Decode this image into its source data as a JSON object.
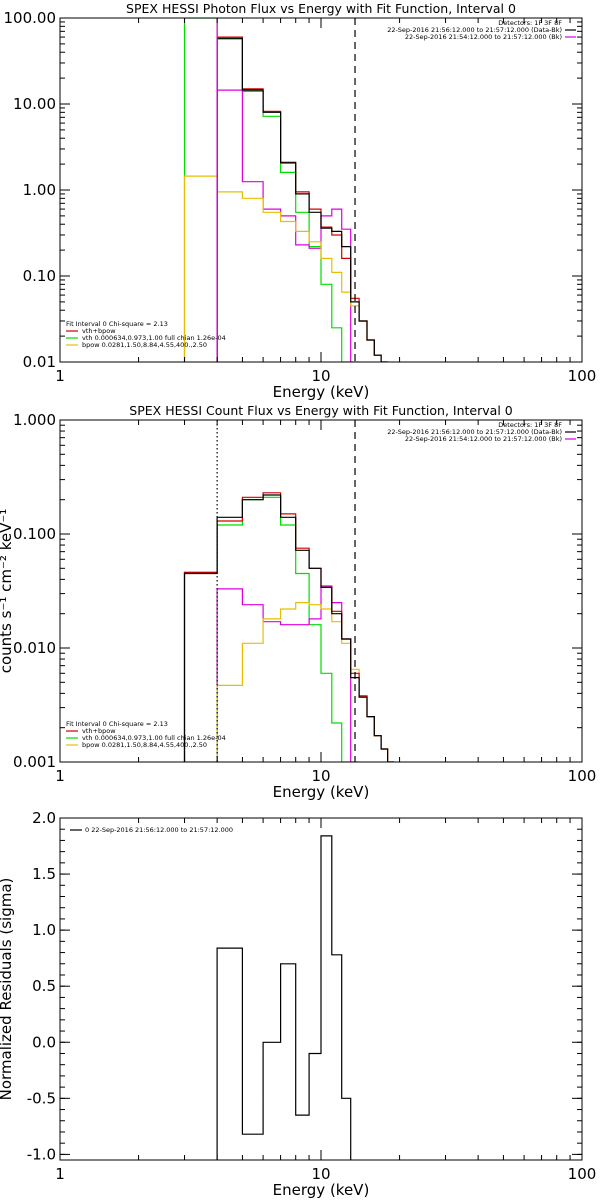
{
  "colors": {
    "total": "#000000",
    "model": "#d00000",
    "vth": "#00dd00",
    "vth2": "#dd00dd",
    "bpow": "#e6c000"
  },
  "chart_data": [
    {
      "type": "line",
      "title": "SPEX HESSI Photon Flux vs Energy with Fit Function, Interval 0",
      "xlabel": "Energy (keV)",
      "ylabel": "",
      "xscale": "log",
      "yscale": "log",
      "xlim": [
        1,
        100
      ],
      "ylim": [
        0.01,
        100
      ],
      "xticks": [
        "1",
        "10",
        "100"
      ],
      "yticks": [
        "0.01",
        "0.10",
        "1.00",
        "10.00",
        "100.00"
      ],
      "vlines": [
        {
          "x": 4.0,
          "style": "solid",
          "color": "#dd00dd"
        },
        {
          "x": 13.5,
          "style": "dashed",
          "color": "#000000"
        }
      ],
      "legend_top": [
        {
          "text": "Detectors: 1F 3F 8F",
          "color": ""
        },
        {
          "text": "22-Sep-2016 21:56:12.000 to 21:57:12.000 (Data-Bk)",
          "color": "#000000"
        },
        {
          "text": "22-Sep-2016 21:54:12.000 to 21:57:12.000 (Bk)",
          "color": "#dd00dd"
        }
      ],
      "legend_bottom": [
        {
          "text": "Fit Interval 0   Chi-square = 2.13",
          "color": ""
        },
        {
          "text": "vth+bpow",
          "color": "#d00000"
        },
        {
          "text": "vth 0.000634,0.973,1.00  full chian 1.26e-04",
          "color": "#00dd00"
        },
        {
          "text": "bpow 0.0281,1.50,8.84,4.55,400.,2.50",
          "color": "#e6c000"
        }
      ],
      "edges": [
        3,
        4,
        5,
        6,
        7,
        8,
        9,
        10,
        11,
        12,
        13,
        14,
        15,
        16,
        17,
        18,
        19,
        20
      ],
      "series": [
        {
          "key": "total",
          "values": [
            null,
            58,
            14.5,
            8,
            2.1,
            0.9,
            0.55,
            0.36,
            0.33,
            0.22,
            0.05,
            0.03,
            0.018,
            0.012,
            0.01,
            null,
            null
          ]
        },
        {
          "key": "model",
          "values": [
            null,
            60,
            15,
            8.2,
            2.05,
            0.95,
            0.6,
            0.37,
            0.3,
            0.16,
            0.055,
            0.03,
            0.018,
            0.012,
            0.01,
            null,
            null
          ]
        },
        {
          "key": "vth",
          "values": [
            100,
            57,
            14,
            7.2,
            1.6,
            0.55,
            0.22,
            0.08,
            0.025,
            0.01,
            null,
            null,
            null,
            null,
            null,
            null,
            null
          ]
        },
        {
          "key": "vth2",
          "values": [
            null,
            14.5,
            1.25,
            0.6,
            0.5,
            0.23,
            0.21,
            0.5,
            0.6,
            0.35,
            0.01,
            null,
            null,
            null,
            null,
            null,
            null
          ]
        },
        {
          "key": "bpow",
          "values": [
            1.45,
            0.95,
            0.8,
            0.55,
            0.43,
            0.33,
            0.25,
            0.16,
            0.11,
            0.065,
            0.045,
            0.03,
            0.018,
            0.012,
            0.01,
            null,
            null
          ]
        }
      ]
    },
    {
      "type": "line",
      "title": "SPEX HESSI Count Flux vs Energy with Fit Function, Interval 0",
      "xlabel": "Energy (keV)",
      "ylabel": "counts s⁻¹ cm⁻² keV⁻¹",
      "xscale": "log",
      "yscale": "log",
      "xlim": [
        1,
        100
      ],
      "ylim": [
        0.001,
        1
      ],
      "xticks": [
        "1",
        "10",
        "100"
      ],
      "yticks": [
        "0.001",
        "0.010",
        "0.100",
        "1.000"
      ],
      "vlines": [
        {
          "x": 4.0,
          "style": "dotted",
          "color": "#000000"
        },
        {
          "x": 13.5,
          "style": "dashed",
          "color": "#000000"
        }
      ],
      "legend_top": [
        {
          "text": "Detectors: 1F 3F 8F",
          "color": ""
        },
        {
          "text": "22-Sep-2016 21:56:12.000 to 21:57:12.000 (Data-Bk)",
          "color": "#000000"
        },
        {
          "text": "22-Sep-2016 21:54:12.000 to 21:57:12.000 (Bk)",
          "color": "#dd00dd"
        }
      ],
      "legend_bottom": [
        {
          "text": "Fit Interval 0   Chi-square = 2.13",
          "color": ""
        },
        {
          "text": "vth+bpow",
          "color": "#d00000"
        },
        {
          "text": "vth 0.000634,0.973,1.00  full chian 1.26e-04",
          "color": "#00dd00"
        },
        {
          "text": "bpow 0.0281,1.50,8.84,4.55,400.,2.50",
          "color": "#e6c000"
        }
      ],
      "edges": [
        3,
        4,
        5,
        6,
        7,
        8,
        9,
        10,
        11,
        12,
        13,
        14,
        15,
        16,
        17,
        18,
        19,
        20
      ],
      "series": [
        {
          "key": "total",
          "values": [
            0.045,
            0.14,
            0.2,
            0.22,
            0.14,
            0.072,
            0.05,
            0.034,
            0.02,
            0.012,
            0.0055,
            0.0037,
            0.0025,
            0.0017,
            0.0013,
            0.001,
            null
          ]
        },
        {
          "key": "model",
          "values": [
            0.046,
            0.13,
            0.21,
            0.23,
            0.15,
            0.075,
            0.05,
            0.034,
            0.021,
            0.012,
            0.006,
            0.0038,
            0.0025,
            0.0017,
            0.0013,
            0.001,
            null
          ]
        },
        {
          "key": "vth",
          "values": [
            0.046,
            0.12,
            0.2,
            0.21,
            0.12,
            0.045,
            0.016,
            0.006,
            0.0022,
            0.001,
            null,
            null,
            null,
            null,
            null,
            null,
            null
          ]
        },
        {
          "key": "vth2",
          "values": [
            null,
            0.033,
            0.024,
            0.017,
            0.016,
            0.016,
            0.018,
            0.035,
            0.025,
            0.012,
            0.001,
            null,
            null,
            null,
            null,
            null,
            null
          ]
        },
        {
          "key": "bpow",
          "values": [
            0.001,
            0.0047,
            0.011,
            0.018,
            0.022,
            0.025,
            0.024,
            0.022,
            0.017,
            0.011,
            0.0065,
            0.0037,
            0.0025,
            0.0017,
            0.0013,
            0.001,
            null
          ]
        }
      ]
    },
    {
      "type": "line",
      "title": "",
      "xlabel": "Energy (keV)",
      "ylabel": "Normalized Residuals (sigma)",
      "xscale": "log",
      "yscale": "linear",
      "xlim": [
        1,
        100
      ],
      "ylim": [
        -1.05,
        2.0
      ],
      "xticks": [
        "1",
        "10",
        "100"
      ],
      "yticks": [
        "-1.0",
        "-0.5",
        "0.0",
        "0.5",
        "1.0",
        "1.5",
        "2.0"
      ],
      "vlines": [],
      "legend_top": [
        {
          "text": "0  22-Sep-2016 21:56:12.000 to 21:57:12.000",
          "color": "#000000"
        }
      ],
      "legend_bottom": [],
      "edges": [
        4,
        5,
        6,
        7,
        8,
        9,
        10,
        11,
        12,
        13
      ],
      "series": [
        {
          "key": "total",
          "values": [
            0.84,
            -0.82,
            0.0,
            0.7,
            -0.65,
            -0.1,
            1.84,
            0.78,
            -0.5
          ]
        }
      ]
    }
  ]
}
